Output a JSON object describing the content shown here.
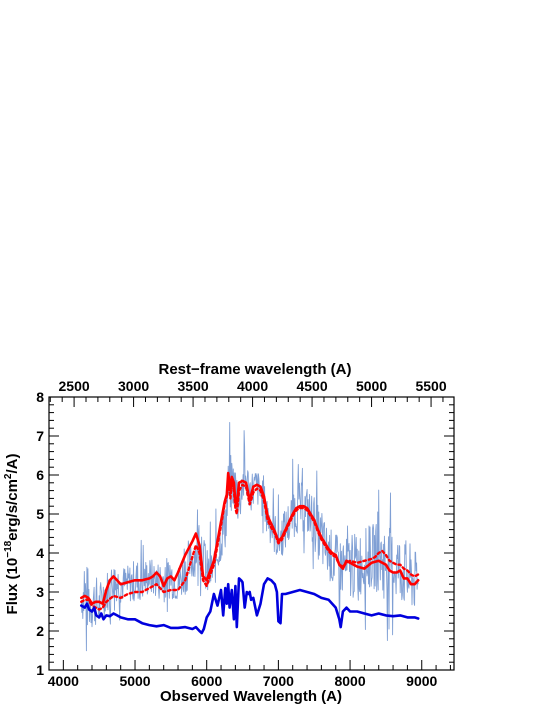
{
  "chart_data": {
    "type": "line",
    "top_axis_label": "Rest−frame wavelength (A)",
    "xlabel": "Observed Wavelength (A)",
    "ylabel_prefix": "Flux (10",
    "ylabel_exp1": "−18",
    "ylabel_mid": "erg/s/cm",
    "ylabel_exp2": "2",
    "ylabel_suffix": "/A)",
    "xlim": [
      3800,
      9450
    ],
    "ylim": [
      1,
      8
    ],
    "x_ticks": [
      4000,
      5000,
      6000,
      7000,
      8000,
      9000
    ],
    "y_ticks": [
      1,
      2,
      3,
      4,
      5,
      6,
      7,
      8
    ],
    "top_ticks": [
      2500,
      3000,
      3500,
      4000,
      4500,
      5000,
      5500
    ],
    "redshift_factor": 1.66,
    "grid": false,
    "series": [
      {
        "role": "observed-spectrum",
        "color": "#7f9fd4",
        "style": "noisy-thin",
        "x": [
          4250,
          4300,
          4350,
          4400,
          4450,
          4500,
          4550,
          4600,
          4700,
          4800,
          4900,
          5000,
          5100,
          5200,
          5300,
          5400,
          5500,
          5600,
          5700,
          5800,
          5900,
          5950,
          6000,
          6100,
          6200,
          6280,
          6300,
          6350,
          6400,
          6450,
          6500,
          6550,
          6600,
          6700,
          6800,
          6900,
          7000,
          7100,
          7200,
          7300,
          7400,
          7500,
          7600,
          7700,
          7800,
          7900,
          8000,
          8100,
          8200,
          8300,
          8400,
          8500,
          8600,
          8700,
          8800,
          8900,
          8950
        ],
        "y": [
          2.8,
          2.9,
          2.8,
          2.7,
          2.8,
          2.6,
          2.9,
          3.0,
          3.3,
          3.2,
          3.2,
          3.3,
          3.3,
          3.4,
          3.3,
          3.3,
          3.4,
          3.2,
          3.5,
          3.8,
          4.3,
          4.0,
          3.4,
          3.6,
          4.4,
          5.0,
          5.6,
          5.9,
          5.6,
          5.2,
          5.8,
          5.9,
          5.6,
          5.7,
          5.3,
          4.7,
          4.3,
          4.6,
          5.0,
          5.2,
          5.1,
          4.8,
          4.3,
          4.0,
          3.8,
          3.6,
          3.6,
          3.7,
          3.8,
          3.9,
          3.9,
          3.8,
          3.7,
          3.6,
          3.4,
          3.3,
          3.2
        ],
        "noise": [
          0.5,
          1.4,
          1.2,
          1.0,
          1.0,
          0.9,
          0.8,
          0.8,
          0.7,
          0.7,
          0.7,
          0.8,
          0.8,
          0.7,
          0.7,
          0.8,
          0.8,
          0.7,
          0.8,
          0.8,
          0.9,
          0.7,
          1.0,
          0.8,
          0.9,
          1.2,
          1.1,
          1.0,
          0.8,
          0.8,
          0.9,
          0.8,
          0.8,
          0.7,
          0.7,
          0.8,
          0.8,
          0.8,
          0.9,
          0.9,
          0.9,
          1.0,
          1.0,
          1.0,
          1.0,
          1.1,
          1.2,
          1.2,
          1.2,
          1.2,
          1.3,
          1.3,
          1.3,
          1.3,
          1.3,
          1.2,
          0.8
        ]
      },
      {
        "role": "model-total-solid",
        "color": "#ff0000",
        "style": "solid",
        "x": [
          4250,
          4300,
          4350,
          4400,
          4450,
          4500,
          4550,
          4600,
          4650,
          4700,
          4800,
          4900,
          5000,
          5100,
          5200,
          5250,
          5300,
          5350,
          5400,
          5450,
          5500,
          5550,
          5600,
          5700,
          5800,
          5850,
          5900,
          5950,
          6000,
          6050,
          6100,
          6150,
          6200,
          6250,
          6280,
          6300,
          6330,
          6350,
          6380,
          6400,
          6420,
          6450,
          6500,
          6550,
          6600,
          6650,
          6700,
          6750,
          6800,
          6850,
          6900,
          6950,
          7000,
          7050,
          7100,
          7150,
          7200,
          7250,
          7300,
          7350,
          7400,
          7450,
          7500,
          7550,
          7600,
          7650,
          7700,
          7750,
          7800,
          7850,
          7900,
          7950,
          8000,
          8050,
          8100,
          8200,
          8300,
          8400,
          8500,
          8550,
          8600,
          8650,
          8700,
          8750,
          8800,
          8850,
          8900,
          8950
        ],
        "y": [
          2.85,
          2.9,
          2.85,
          2.7,
          2.75,
          2.75,
          2.7,
          3.05,
          3.3,
          3.4,
          3.2,
          3.25,
          3.3,
          3.3,
          3.35,
          3.4,
          3.5,
          3.4,
          3.15,
          3.35,
          3.4,
          3.3,
          3.5,
          3.95,
          4.3,
          4.5,
          4.2,
          3.4,
          3.3,
          3.55,
          3.8,
          4.3,
          4.8,
          5.3,
          5.5,
          6.05,
          5.6,
          5.95,
          5.8,
          5.3,
          5.2,
          5.8,
          5.85,
          5.8,
          5.35,
          5.7,
          5.75,
          5.7,
          5.45,
          4.95,
          4.75,
          4.55,
          4.3,
          4.4,
          4.6,
          4.8,
          5.0,
          5.15,
          5.2,
          5.2,
          5.15,
          5.0,
          4.85,
          4.6,
          4.4,
          4.25,
          4.1,
          4.0,
          3.95,
          3.7,
          3.6,
          3.8,
          3.75,
          3.7,
          3.65,
          3.6,
          3.75,
          3.8,
          3.7,
          3.55,
          3.5,
          3.5,
          3.55,
          3.35,
          3.35,
          3.2,
          3.2,
          3.3
        ]
      },
      {
        "role": "model-total-dotted",
        "color": "#ff0000",
        "style": "dotted",
        "x": [
          4250,
          4300,
          4350,
          4400,
          4450,
          4500,
          4550,
          4600,
          4700,
          4800,
          4900,
          5000,
          5100,
          5200,
          5300,
          5400,
          5500,
          5600,
          5700,
          5800,
          5850,
          5900,
          5950,
          6000,
          6050,
          6100,
          6150,
          6200,
          6250,
          6280,
          6300,
          6330,
          6350,
          6380,
          6400,
          6420,
          6450,
          6500,
          6550,
          6600,
          6650,
          6700,
          6750,
          6800,
          6850,
          6900,
          6950,
          7000,
          7050,
          7100,
          7150,
          7200,
          7250,
          7300,
          7350,
          7400,
          7450,
          7500,
          7550,
          7600,
          7650,
          7700,
          7750,
          7800,
          7850,
          7900,
          7950,
          8000,
          8100,
          8200,
          8300,
          8350,
          8400,
          8450,
          8500,
          8550,
          8600,
          8650,
          8700,
          8750,
          8800,
          8850,
          8900,
          8950
        ],
        "y": [
          2.75,
          2.8,
          2.8,
          2.65,
          2.6,
          2.55,
          2.6,
          2.75,
          2.9,
          2.85,
          2.95,
          3.0,
          3.0,
          3.1,
          3.2,
          3.0,
          3.05,
          3.05,
          3.3,
          3.9,
          4.2,
          4.0,
          3.3,
          3.15,
          3.45,
          3.7,
          4.2,
          4.7,
          5.25,
          5.45,
          5.9,
          5.4,
          5.8,
          5.6,
          5.15,
          5.0,
          5.6,
          5.75,
          5.7,
          5.25,
          5.55,
          5.65,
          5.6,
          5.35,
          4.85,
          4.65,
          4.5,
          4.25,
          4.35,
          4.55,
          4.75,
          4.95,
          5.1,
          5.15,
          5.15,
          5.1,
          4.95,
          4.8,
          4.55,
          4.35,
          4.2,
          4.05,
          3.95,
          3.9,
          3.7,
          3.65,
          3.75,
          3.8,
          3.75,
          3.8,
          3.85,
          3.9,
          4.0,
          4.05,
          3.95,
          3.8,
          3.75,
          3.7,
          3.7,
          3.6,
          3.55,
          3.45,
          3.4,
          3.45
        ]
      },
      {
        "role": "model-component",
        "color": "#0000dd",
        "style": "solid",
        "x": [
          4250,
          4300,
          4330,
          4360,
          4400,
          4430,
          4460,
          4500,
          4530,
          4560,
          4600,
          4650,
          4700,
          4750,
          4800,
          4900,
          5000,
          5100,
          5200,
          5300,
          5400,
          5500,
          5600,
          5700,
          5800,
          5850,
          5900,
          5930,
          5960,
          6000,
          6050,
          6100,
          6150,
          6200,
          6230,
          6260,
          6280,
          6300,
          6320,
          6350,
          6380,
          6400,
          6420,
          6450,
          6480,
          6500,
          6530,
          6560,
          6580,
          6600,
          6620,
          6650,
          6700,
          6750,
          6800,
          6850,
          6900,
          6950,
          6980,
          7000,
          7030,
          7050,
          7100,
          7200,
          7300,
          7400,
          7500,
          7600,
          7700,
          7800,
          7850,
          7870,
          7900,
          7950,
          8000,
          8100,
          8200,
          8300,
          8400,
          8500,
          8600,
          8700,
          8800,
          8900,
          8950
        ],
        "y": [
          2.65,
          2.6,
          2.7,
          2.55,
          2.5,
          2.6,
          2.4,
          2.35,
          2.45,
          2.3,
          2.4,
          2.38,
          2.45,
          2.4,
          2.35,
          2.3,
          2.3,
          2.2,
          2.15,
          2.12,
          2.15,
          2.08,
          2.08,
          2.1,
          2.05,
          2.1,
          2.0,
          1.95,
          2.05,
          2.35,
          2.5,
          2.95,
          2.65,
          3.05,
          2.4,
          3.1,
          2.7,
          3.2,
          2.6,
          3.05,
          2.3,
          3.15,
          2.1,
          3.35,
          3.3,
          3.25,
          2.6,
          3.0,
          2.95,
          3.0,
          2.8,
          2.85,
          2.4,
          2.7,
          3.2,
          3.35,
          3.3,
          3.2,
          3.0,
          2.25,
          2.2,
          2.95,
          2.95,
          3.0,
          3.05,
          3.0,
          2.95,
          2.85,
          2.8,
          2.6,
          2.3,
          2.1,
          2.5,
          2.6,
          2.5,
          2.5,
          2.45,
          2.4,
          2.45,
          2.4,
          2.38,
          2.4,
          2.35,
          2.35,
          2.32
        ]
      }
    ]
  }
}
